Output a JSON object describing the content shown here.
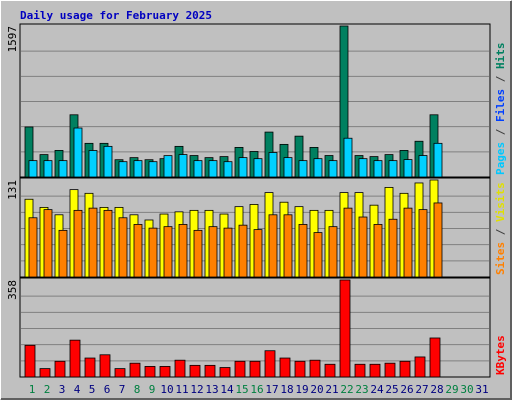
{
  "chart_data": [
    {
      "type": "bar",
      "title": "Daily usage for February 2025",
      "categories": [
        "1",
        "2",
        "3",
        "4",
        "5",
        "6",
        "7",
        "8",
        "9",
        "10",
        "11",
        "12",
        "13",
        "14",
        "15",
        "16",
        "17",
        "18",
        "19",
        "20",
        "21",
        "22",
        "23",
        "24",
        "25",
        "26",
        "27",
        "28",
        "29",
        "30",
        "31"
      ],
      "label_colors": [
        "#008040",
        "#008040",
        "#000080",
        "#000080",
        "#000080",
        "#000080",
        "#000080",
        "#008040",
        "#008040",
        "#000080",
        "#000080",
        "#000080",
        "#000080",
        "#000080",
        "#008040",
        "#008040",
        "#000080",
        "#000080",
        "#000080",
        "#000080",
        "#000080",
        "#008040",
        "#008040",
        "#000080",
        "#000080",
        "#000080",
        "#000080",
        "#000080",
        "#008040",
        "#008040",
        "#000080"
      ],
      "ylim": [
        0,
        1597
      ],
      "yticks": [
        1597
      ],
      "legend": [
        {
          "text": "Pages",
          "color": "#00c8ff"
        },
        {
          "text": " / ",
          "color": "#404040"
        },
        {
          "text": "Files",
          "color": "#0040ff"
        },
        {
          "text": " / ",
          "color": "#404040"
        },
        {
          "text": "Hits",
          "color": "#008060"
        }
      ],
      "series": [
        {
          "color": "#008060",
          "values": [
            529,
            237,
            281,
            658,
            356,
            356,
            183,
            205,
            183,
            194,
            324,
            227,
            205,
            216,
            313,
            270,
            475,
            345,
            432,
            313,
            227,
            1597,
            227,
            216,
            237,
            281,
            378,
            658,
            null,
            null,
            null
          ]
        },
        {
          "color": "#00d0ff",
          "values": [
            173,
            173,
            173,
            518,
            280,
            324,
            162,
            173,
            162,
            226,
            237,
            173,
            173,
            162,
            205,
            194,
            259,
            205,
            173,
            194,
            173,
            410,
            194,
            173,
            173,
            184,
            227,
            356,
            null,
            null,
            null
          ]
        }
      ]
    },
    {
      "type": "bar",
      "ylim": [
        0,
        131
      ],
      "yticks": [
        131
      ],
      "legend": [
        {
          "text": "Sites",
          "color": "#ff8000"
        },
        {
          "text": " / ",
          "color": "#404040"
        },
        {
          "text": "Visits",
          "color": "#e0e000"
        }
      ],
      "series": [
        {
          "color": "#ffff00",
          "values": [
            105,
            94,
            84,
            118,
            113,
            94,
            94,
            84,
            77,
            85,
            88,
            90,
            90,
            85,
            95,
            98,
            114,
            101,
            95,
            90,
            90,
            114,
            114,
            97,
            121,
            113,
            127,
            131,
            null,
            null,
            null
          ]
        },
        {
          "color": "#ff8000",
          "values": [
            80,
            91,
            63,
            90,
            93,
            90,
            80,
            71,
            66,
            68,
            71,
            63,
            68,
            66,
            70,
            64,
            84,
            84,
            71,
            60,
            68,
            93,
            81,
            71,
            78,
            93,
            91,
            100,
            null,
            null,
            null
          ]
        }
      ]
    },
    {
      "type": "bar",
      "ylim": [
        0,
        358
      ],
      "yticks": [
        358
      ],
      "legend": [
        {
          "text": "KBytes",
          "color": "#ff0000"
        }
      ],
      "series": [
        {
          "color": "#ff0000",
          "values": [
            117,
            31,
            58,
            136,
            70,
            82,
            31,
            51,
            39,
            39,
            62,
            43,
            43,
            35,
            58,
            58,
            97,
            70,
            58,
            62,
            47,
            358,
            47,
            47,
            51,
            58,
            74,
            144,
            null,
            null,
            null
          ]
        }
      ]
    }
  ]
}
